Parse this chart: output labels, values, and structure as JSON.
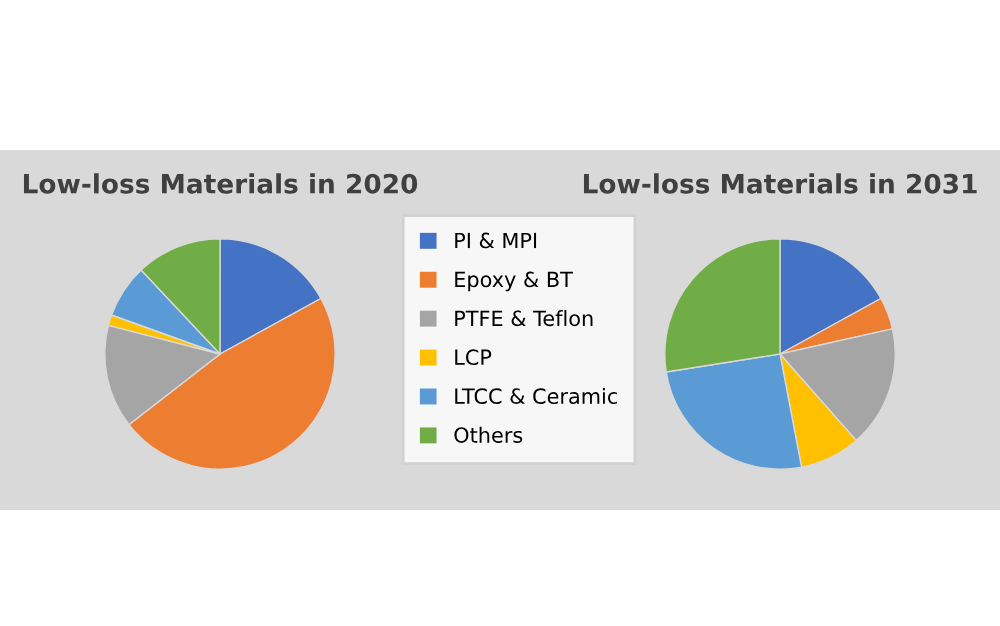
{
  "chart_data": [
    {
      "type": "pie",
      "title": "Low-loss Materials in 2020",
      "categories": [
        "PI & MPI",
        "Epoxy & BT",
        "PTFE & Teflon",
        "LCP",
        "LTCC & Ceramic",
        "Others"
      ],
      "values": [
        17,
        47.5,
        14.5,
        1.5,
        7.5,
        12
      ],
      "colors": [
        "#4472c4",
        "#ed7d31",
        "#a5a5a5",
        "#ffc000",
        "#5b9bd5",
        "#70ad47"
      ],
      "legend": "right"
    },
    {
      "type": "pie",
      "title": "Low-loss Materials in 2031",
      "categories": [
        null,
        null,
        null,
        null,
        null,
        null
      ],
      "values": [
        17,
        4.5,
        17,
        8.5,
        25.5,
        27.5
      ],
      "colors": [
        "#4472c4",
        "#ed7d31",
        "#a5a5a5",
        "#ffc000",
        "#5b9bd5",
        "#70ad47"
      ],
      "legend": false
    }
  ]
}
